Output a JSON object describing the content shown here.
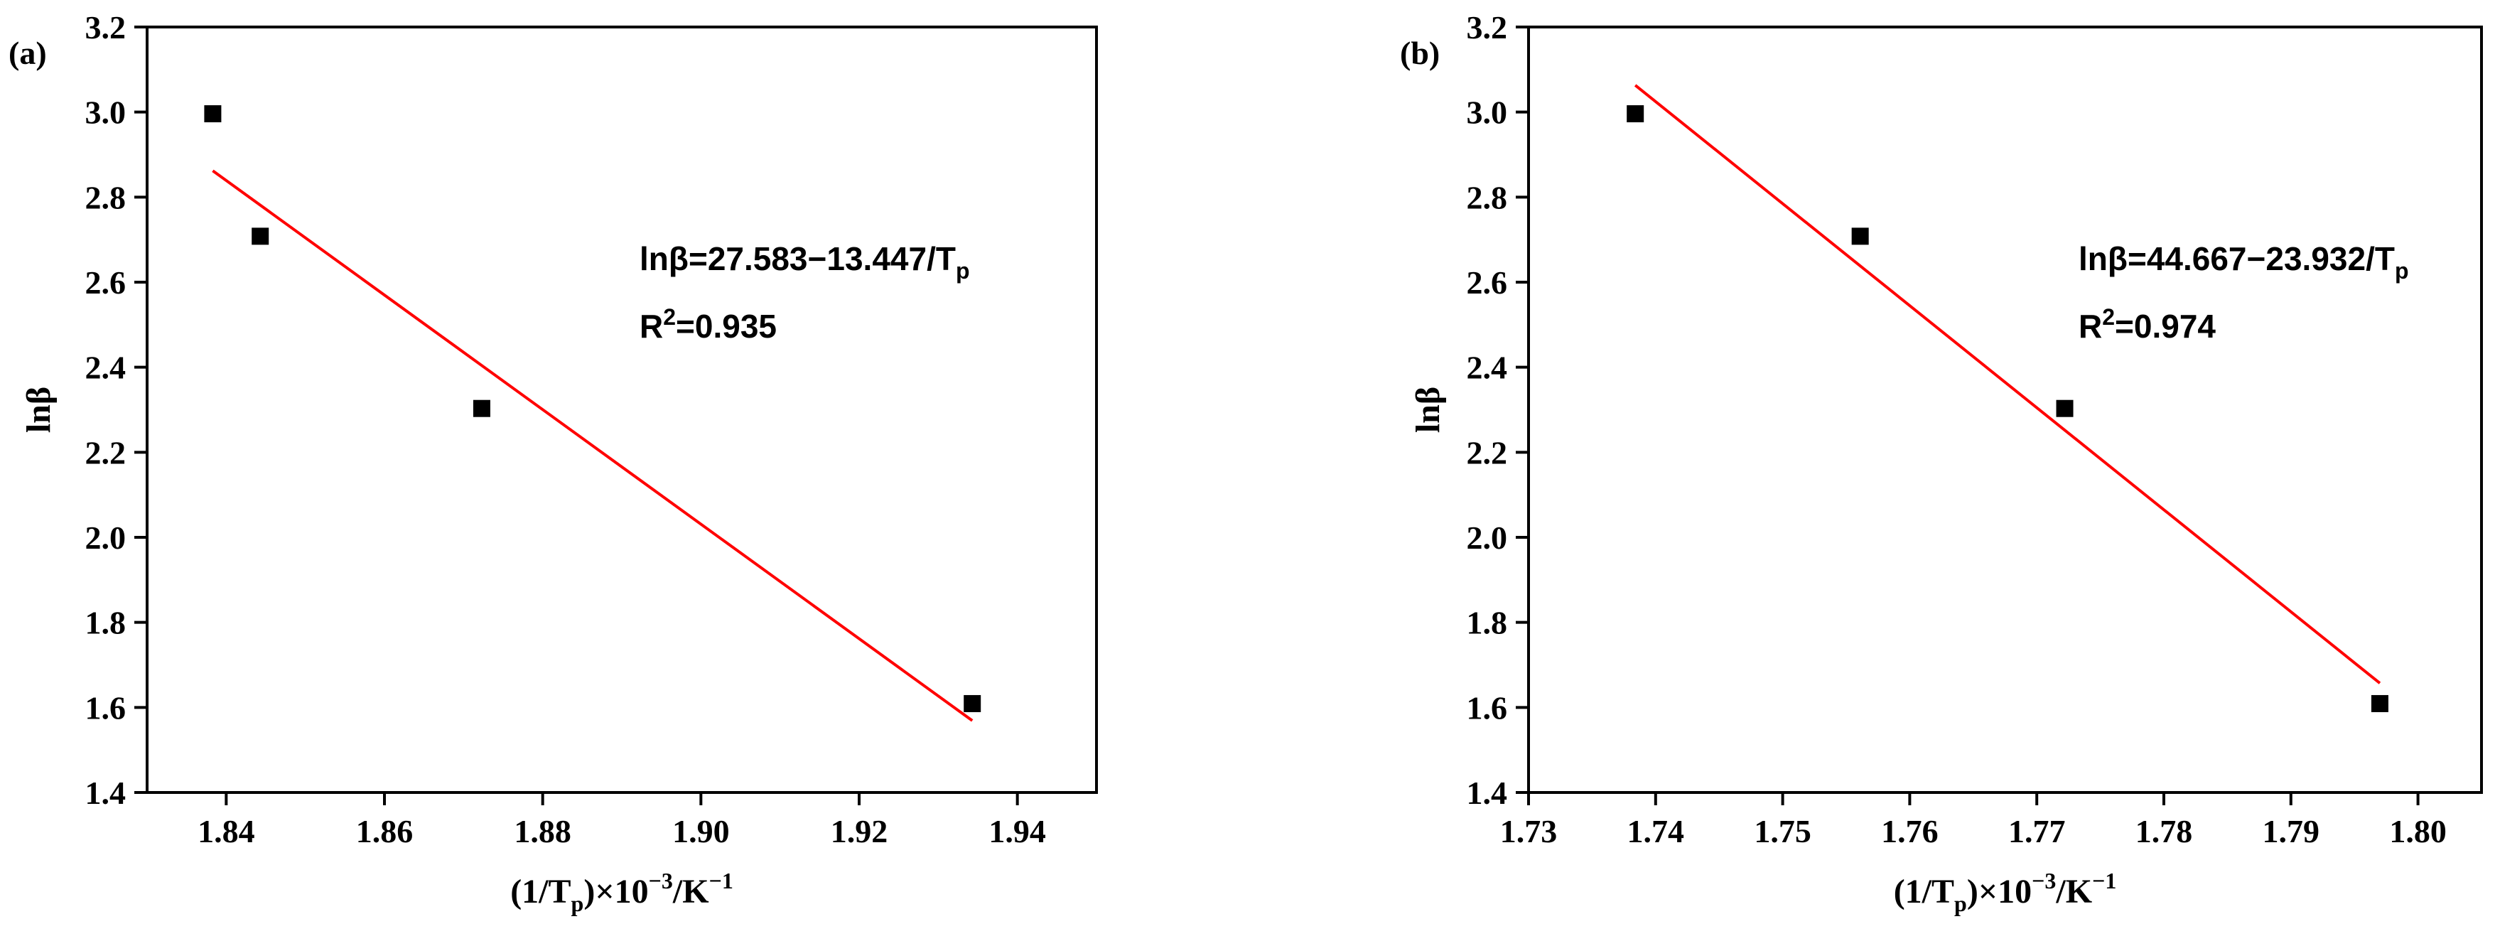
{
  "chart_data": [
    {
      "panel_label": "(a)",
      "type": "scatter",
      "xlabel": {
        "pre": "(1/T",
        "sub": "p",
        "post": ")×10",
        "sup": "−3",
        "tail": "/K",
        "sup2": "−1"
      },
      "ylabel": "lnβ",
      "xlim": [
        1.83,
        1.95
      ],
      "ylim": [
        1.4,
        3.2
      ],
      "xticks": [
        1.84,
        1.86,
        1.88,
        1.9,
        1.92,
        1.94
      ],
      "xtick_labels": [
        "1.84",
        "1.86",
        "1.88",
        "1.90",
        "1.92",
        "1.94"
      ],
      "yticks": [
        1.4,
        1.6,
        1.8,
        2.0,
        2.2,
        2.4,
        2.6,
        2.8,
        3.0,
        3.2
      ],
      "ytick_labels": [
        "1.4",
        "1.6",
        "1.8",
        "2.0",
        "2.2",
        "2.4",
        "2.6",
        "2.8",
        "3.0",
        "3.2"
      ],
      "points": [
        {
          "x": 1.8383,
          "y": 2.996
        },
        {
          "x": 1.8443,
          "y": 2.708
        },
        {
          "x": 1.8723,
          "y": 2.303
        },
        {
          "x": 1.9343,
          "y": 1.609
        }
      ],
      "fit_line": {
        "x": [
          1.8383,
          1.9343
        ],
        "y": [
          2.862,
          1.569
        ],
        "color": "#ff0000"
      },
      "equation": {
        "pre": "lnβ=27.583−13.447/T",
        "sub": "p"
      },
      "r2": {
        "pre": "R",
        "sup": "2",
        "post": "=0.935"
      }
    },
    {
      "panel_label": "(b)",
      "type": "scatter",
      "xlabel": {
        "pre": "(1/T",
        "sub": "p",
        "post": ")×10",
        "sup": "−3",
        "tail": "/K",
        "sup2": "−1"
      },
      "ylabel": "lnβ",
      "xlim": [
        1.73,
        1.805
      ],
      "ylim": [
        1.4,
        3.2
      ],
      "xticks": [
        1.73,
        1.74,
        1.75,
        1.76,
        1.77,
        1.78,
        1.79,
        1.8
      ],
      "xtick_labels": [
        "1.73",
        "1.74",
        "1.75",
        "1.76",
        "1.77",
        "1.78",
        "1.79",
        "1.80"
      ],
      "yticks": [
        1.4,
        1.6,
        1.8,
        2.0,
        2.2,
        2.4,
        2.6,
        2.8,
        3.0,
        3.2
      ],
      "ytick_labels": [
        "1.4",
        "1.6",
        "1.8",
        "2.0",
        "2.2",
        "2.4",
        "2.6",
        "2.8",
        "3.0",
        "3.2"
      ],
      "points": [
        {
          "x": 1.7384,
          "y": 2.996
        },
        {
          "x": 1.7561,
          "y": 2.708
        },
        {
          "x": 1.7722,
          "y": 2.303
        },
        {
          "x": 1.797,
          "y": 1.609
        }
      ],
      "fit_line": {
        "x": [
          1.7384,
          1.797
        ],
        "y": [
          3.063,
          1.657
        ],
        "color": "#ff0000"
      },
      "equation": {
        "pre": "lnβ=44.667−23.932/T",
        "sub": "p"
      },
      "r2": {
        "pre": "R",
        "sup": "2",
        "post": "=0.974"
      }
    }
  ]
}
